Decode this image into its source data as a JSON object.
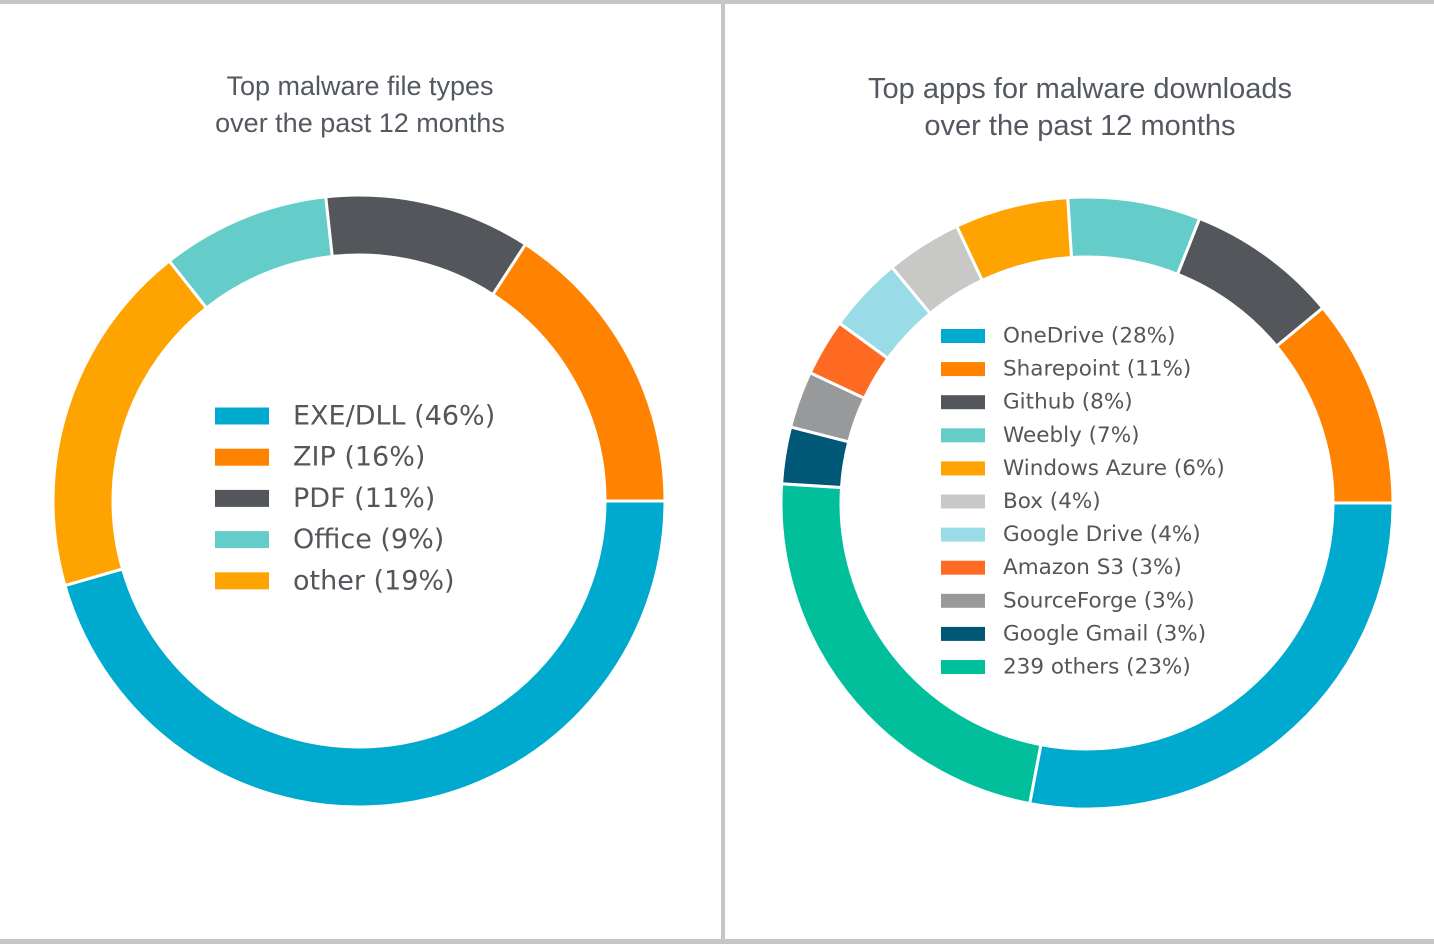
{
  "chart_data": [
    {
      "type": "pie",
      "variant": "donut",
      "title": [
        "Top malware file types",
        "over the past 12 months"
      ],
      "legend_placement": "center",
      "slices": [
        {
          "label": "EXE/DLL (46%)",
          "name": "EXE/DLL",
          "value": 46,
          "color": "#00a9ce"
        },
        {
          "label": "other (19%)",
          "name": "other",
          "value": 19,
          "color": "#ffa300"
        },
        {
          "label": "Office (9%)",
          "name": "Office",
          "value": 9,
          "color": "#64ccc9"
        },
        {
          "label": "PDF (11%)",
          "name": "PDF",
          "value": 11,
          "color": "#53565a"
        },
        {
          "label": "ZIP (16%)",
          "name": "ZIP",
          "value": 16,
          "color": "#ff8200"
        }
      ],
      "legend_order": [
        0,
        4,
        3,
        2,
        1
      ]
    },
    {
      "type": "pie",
      "variant": "donut",
      "title": [
        "Top apps for malware downloads",
        "over the past 12 months"
      ],
      "legend_placement": "center",
      "slices": [
        {
          "label": "OneDrive (28%)",
          "name": "OneDrive",
          "value": 28,
          "color": "#00a9ce"
        },
        {
          "label": "239 others (23%)",
          "name": "239 others",
          "value": 23,
          "color": "#00bf9a"
        },
        {
          "label": "Google Gmail (3%)",
          "name": "Google Gmail",
          "value": 3,
          "color": "#005776"
        },
        {
          "label": "SourceForge (3%)",
          "name": "SourceForge",
          "value": 3,
          "color": "#97999b"
        },
        {
          "label": "Amazon S3 (3%)",
          "name": "Amazon S3",
          "value": 3,
          "color": "#ff6a23"
        },
        {
          "label": "Google Drive (4%)",
          "name": "Google Drive",
          "value": 4,
          "color": "#9adbe8"
        },
        {
          "label": "Box (4%)",
          "name": "Box",
          "value": 4,
          "color": "#c8c9c7"
        },
        {
          "label": "Windows Azure (6%)",
          "name": "Windows Azure",
          "value": 6,
          "color": "#ffa300"
        },
        {
          "label": "Weebly (7%)",
          "name": "Weebly",
          "value": 7,
          "color": "#64ccc9"
        },
        {
          "label": "Github (8%)",
          "name": "Github",
          "value": 8,
          "color": "#53565a"
        },
        {
          "label": "Sharepoint (11%)",
          "name": "Sharepoint",
          "value": 11,
          "color": "#ff8200"
        }
      ],
      "legend_order": [
        0,
        10,
        9,
        8,
        7,
        6,
        5,
        4,
        3,
        2,
        1
      ]
    }
  ]
}
